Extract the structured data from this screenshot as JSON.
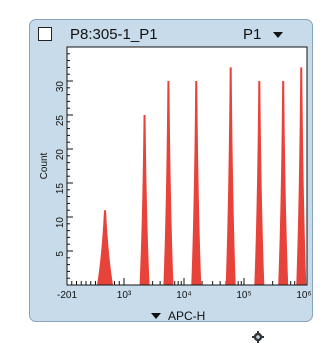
{
  "panel": {
    "title": "P8:305-1_P1",
    "gate": "P1",
    "x_param": "APC-H",
    "ylabel": "Count",
    "icons": {
      "checkbox": "checkbox-icon",
      "gate_dropdown": "chevron-down-icon",
      "axis_dropdown": "chevron-down-icon",
      "settings": "gear-icon"
    }
  },
  "chart_data": {
    "type": "area",
    "title": "",
    "xlabel": "APC-H",
    "ylabel": "Count",
    "x_scale": "biexponential",
    "xlim": [
      -201,
      1000000
    ],
    "ylim": [
      0,
      35
    ],
    "x_ticks": [
      "-201",
      "10³",
      "10⁴",
      "10⁵",
      "10⁶"
    ],
    "y_ticks": [
      "5",
      "10",
      "15",
      "20",
      "25",
      "30"
    ],
    "fill_color": "#e8433a",
    "peaks": [
      {
        "x": 600,
        "height": 11
      },
      {
        "x": 2200,
        "height": 25
      },
      {
        "x": 5500,
        "height": 30
      },
      {
        "x": 16000,
        "height": 30
      },
      {
        "x": 60000,
        "height": 32
      },
      {
        "x": 180000,
        "height": 30
      },
      {
        "x": 450000,
        "height": 30
      },
      {
        "x": 900000,
        "height": 32
      }
    ],
    "grid": false,
    "legend": "none"
  }
}
